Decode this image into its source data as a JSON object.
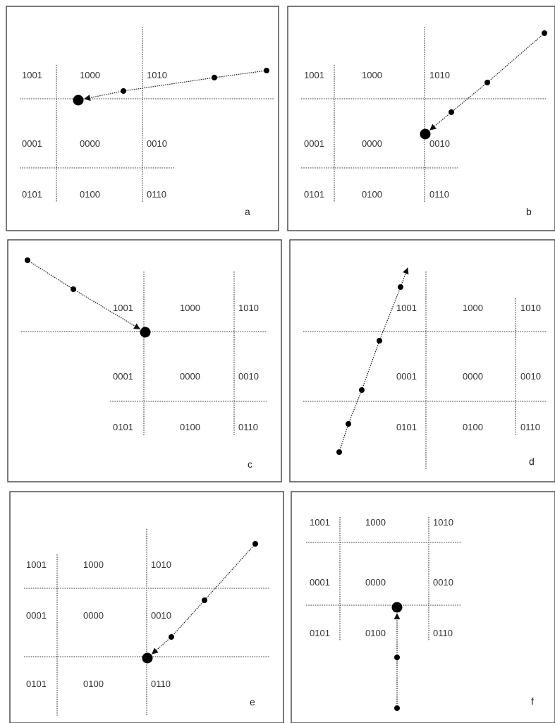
{
  "panels": [
    {
      "label": "a",
      "codes": [
        [
          "1001",
          "1000",
          "1010"
        ],
        [
          "0001",
          "0000",
          "0010"
        ],
        [
          "0101",
          "0100",
          "0110"
        ]
      ]
    },
    {
      "label": "b",
      "codes": [
        [
          "1001",
          "1000",
          "1010"
        ],
        [
          "0001",
          "0000",
          "0010"
        ],
        [
          "0101",
          "0100",
          "0110"
        ]
      ]
    },
    {
      "label": "c",
      "codes": [
        [
          "1001",
          "1000",
          "1010"
        ],
        [
          "0001",
          "0000",
          "0010"
        ],
        [
          "0101",
          "0100",
          "0110"
        ]
      ]
    },
    {
      "label": "d",
      "codes": [
        [
          "1001",
          "1000",
          "1010"
        ],
        [
          "0001",
          "0000",
          "0010"
        ],
        [
          "0101",
          "0100",
          "0110"
        ]
      ]
    },
    {
      "label": "e",
      "codes": [
        [
          "1001",
          "1000",
          "1010"
        ],
        [
          "0001",
          "0000",
          "0010"
        ],
        [
          "0101",
          "0100",
          "0110"
        ]
      ]
    },
    {
      "label": "f",
      "codes": [
        [
          "1001",
          "1000",
          "1010"
        ],
        [
          "0001",
          "0000",
          "0010"
        ],
        [
          "0101",
          "0100",
          "0110"
        ]
      ]
    }
  ]
}
